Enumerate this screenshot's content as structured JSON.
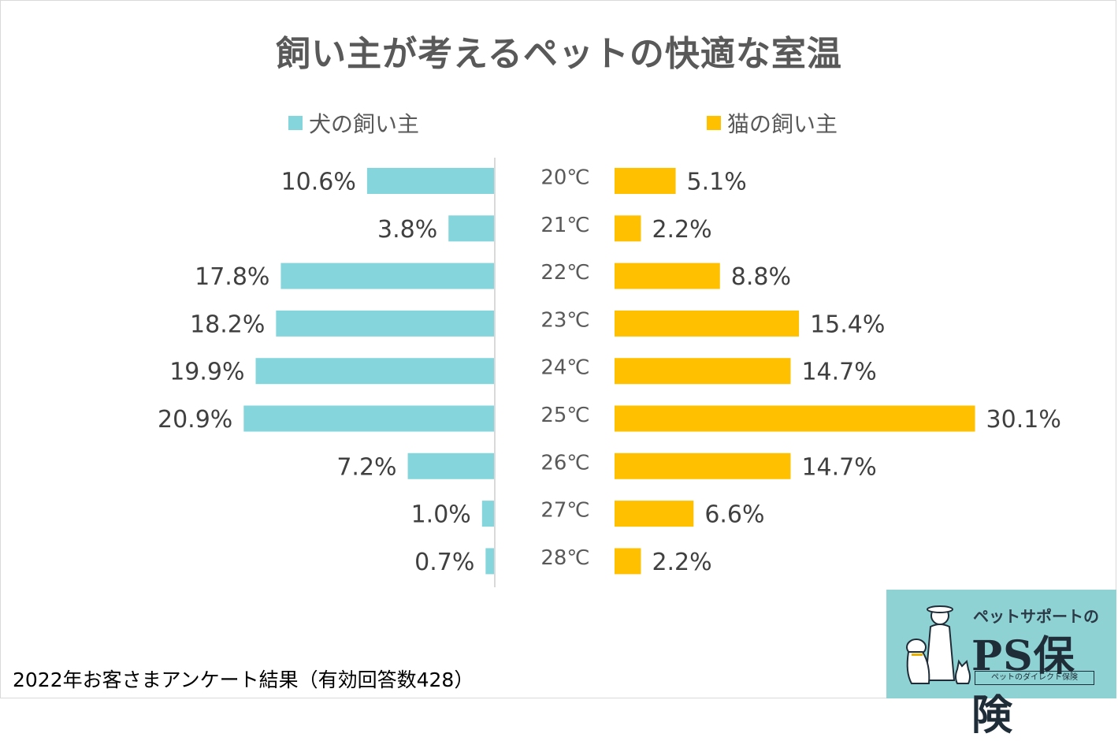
{
  "chart_data": {
    "type": "bar",
    "title": "飼い主が考えるペットの快適な室温",
    "categories": [
      "20℃",
      "21℃",
      "22℃",
      "23℃",
      "24℃",
      "25℃",
      "26℃",
      "27℃",
      "28℃"
    ],
    "series": [
      {
        "name": "犬の飼い主",
        "color": "#84d6dc",
        "values": [
          10.6,
          3.8,
          17.8,
          18.2,
          19.9,
          20.9,
          7.2,
          1.0,
          0.7
        ],
        "labels": [
          "10.6%",
          "3.8%",
          "17.8%",
          "18.2%",
          "19.9%",
          "20.9%",
          "7.2%",
          "1.0%",
          "0.7%"
        ]
      },
      {
        "name": "猫の飼い主",
        "color": "#ffc000",
        "values": [
          5.1,
          2.2,
          8.8,
          15.4,
          14.7,
          30.1,
          14.7,
          6.6,
          2.2
        ],
        "labels": [
          "5.1%",
          "2.2%",
          "8.8%",
          "15.4%",
          "14.7%",
          "30.1%",
          "14.7%",
          "6.6%",
          "2.2%"
        ]
      }
    ],
    "orientation": "horizontal-butterfly",
    "legend_position": "top",
    "grid": false
  },
  "footnote": "2022年お客さまアンケート結果（有効回答数428）",
  "logo": {
    "tagline": "ペットサポートの",
    "name": "PS保険",
    "subline": "ペットのダイレクト保険",
    "icon": "pet-owner-with-dog-and-cat-icon"
  }
}
